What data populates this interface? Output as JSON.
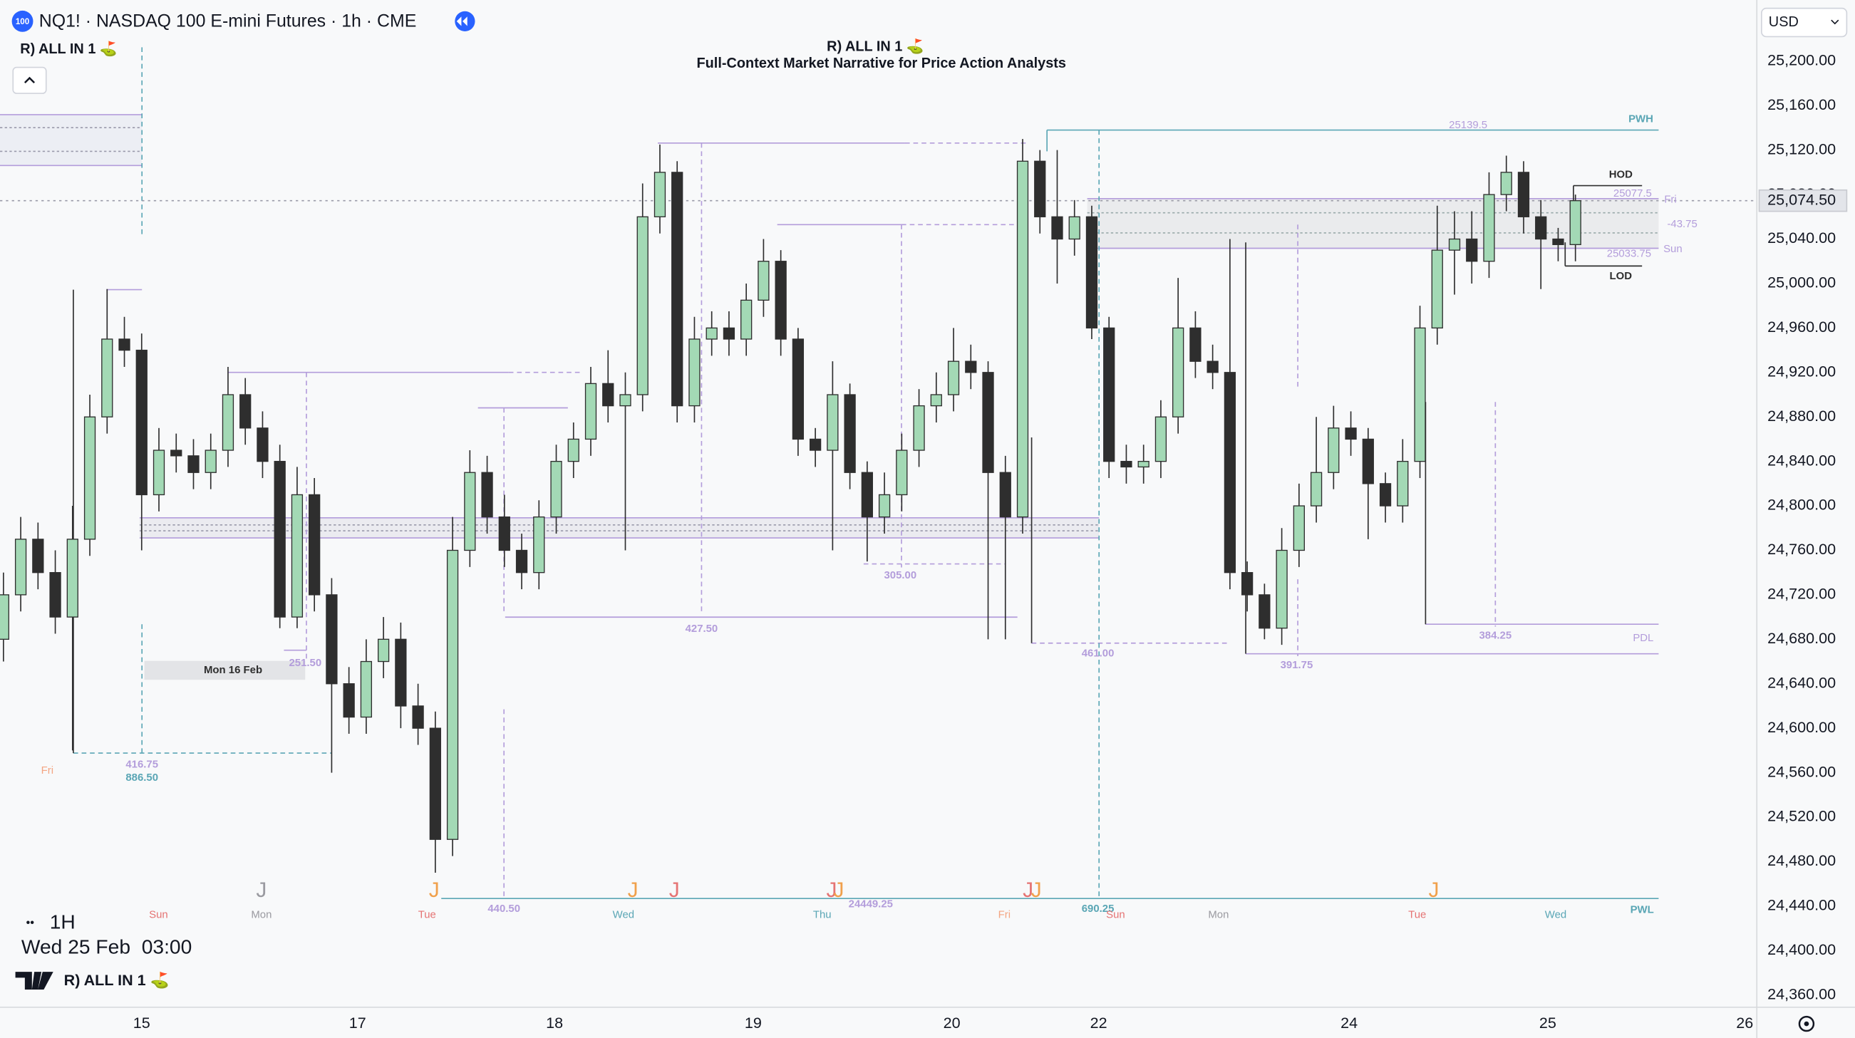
{
  "chart_data": {
    "type": "candlestick",
    "badge": "100",
    "symbol_title": "NQ1! · NASDAQ 100 E-mini Futures · 1h · CME",
    "indicator": "R) ALL IN 1 ⛳",
    "title": "R) ALL IN 1 ⛳",
    "subtitle": "Full-Context Market Narrative for Price Action Analysts",
    "currency": "USD",
    "interval": "1H",
    "date_time": "Wed 25 Feb  03:00",
    "up_color": "#a3d9b5",
    "down_color": "#2e2e2e",
    "open": [
      24680,
      24720,
      24770,
      24740,
      24700,
      24770,
      24880,
      24950,
      24940,
      24810,
      24850,
      24845,
      24830,
      24850,
      24900,
      24870,
      24840,
      24700,
      24810,
      24720,
      24640,
      24610,
      24660,
      24680,
      24620,
      24600,
      24500,
      24760,
      24830,
      24790,
      24760,
      24740,
      24790,
      24840,
      24860,
      24910,
      24890,
      24900,
      25060,
      25100,
      24890,
      24950,
      24960,
      24950,
      24985,
      25020,
      24950,
      24860,
      24850,
      24900,
      24830,
      24790,
      24810,
      24850,
      24890,
      24900,
      24930,
      24920,
      24830,
      24790,
      25110,
      25060,
      25040,
      25060,
      24960,
      24840,
      24835,
      24840,
      24880,
      24960,
      24930,
      24920,
      24740,
      24720,
      24690,
      24760,
      24800,
      24830,
      24870,
      24860,
      24820,
      24800,
      24840,
      24960,
      25030,
      25040,
      25020,
      25080,
      25100,
      25060,
      25040,
      25035
    ],
    "high": [
      24740,
      24790,
      24785,
      24760,
      24800,
      24900,
      24995,
      24970,
      24955,
      24870,
      24865,
      24860,
      24865,
      24925,
      24915,
      24885,
      24855,
      24835,
      24825,
      24735,
      24655,
      24680,
      24700,
      24695,
      24640,
      24615,
      24790,
      24850,
      24845,
      24810,
      24775,
      24805,
      24855,
      24875,
      24925,
      24940,
      24920,
      25090,
      25125,
      25110,
      24970,
      24975,
      24975,
      25000,
      25040,
      25030,
      24960,
      24870,
      24930,
      24910,
      24840,
      24830,
      24865,
      24905,
      24920,
      24960,
      24945,
      24930,
      24845,
      25130,
      25120,
      25120,
      25075,
      25070,
      24970,
      24855,
      24855,
      24895,
      25005,
      24975,
      24945,
      25040,
      24750,
      24730,
      24780,
      24820,
      24880,
      24890,
      24885,
      24870,
      24830,
      24860,
      24980,
      25070,
      25065,
      25065,
      25100,
      25115,
      25110,
      25075,
      25050,
      25080
    ],
    "low": [
      24660,
      24705,
      24725,
      24685,
      24580,
      24755,
      24865,
      24925,
      24760,
      24795,
      24830,
      24815,
      24815,
      24835,
      24855,
      24825,
      24690,
      24690,
      24705,
      24560,
      24595,
      24595,
      24645,
      24600,
      24585,
      24470,
      24485,
      24745,
      24775,
      24745,
      24725,
      24725,
      24775,
      24825,
      24845,
      24875,
      24760,
      24885,
      25045,
      24875,
      24875,
      24935,
      24935,
      24935,
      24970,
      24935,
      24845,
      24835,
      24760,
      24815,
      24750,
      24775,
      24795,
      24835,
      24875,
      24885,
      24905,
      24680,
      24680,
      24775,
      25045,
      25000,
      25025,
      24950,
      24825,
      24820,
      24820,
      24825,
      24865,
      24915,
      24905,
      24725,
      24705,
      24680,
      24675,
      24745,
      24785,
      24815,
      24845,
      24770,
      24785,
      24785,
      24825,
      24945,
      24990,
      25000,
      25005,
      25065,
      25045,
      24995,
      25020,
      25020
    ],
    "close": [
      24720,
      24770,
      24740,
      24700,
      24770,
      24880,
      24950,
      24940,
      24810,
      24850,
      24845,
      24830,
      24850,
      24900,
      24870,
      24840,
      24700,
      24810,
      24720,
      24640,
      24610,
      24660,
      24680,
      24620,
      24600,
      24500,
      24760,
      24830,
      24790,
      24760,
      24740,
      24790,
      24840,
      24860,
      24910,
      24890,
      24900,
      25060,
      25100,
      24890,
      24950,
      24960,
      24950,
      24985,
      25020,
      24950,
      24860,
      24850,
      24900,
      24830,
      24790,
      24810,
      24850,
      24890,
      24900,
      24930,
      24920,
      24830,
      24790,
      25110,
      25060,
      25040,
      25060,
      24960,
      24840,
      24835,
      24840,
      24880,
      24960,
      24930,
      24920,
      24740,
      24720,
      24690,
      24760,
      24800,
      24830,
      24870,
      24860,
      24820,
      24800,
      24840,
      24960,
      25030,
      25040,
      25020,
      25080,
      25100,
      25060,
      25040,
      25035,
      25074.5
    ],
    "last_value": 25074.5,
    "last_value_label": "25,074.50",
    "xlim": [
      -0.2,
      101.5
    ],
    "ylim": [
      24349,
      25255
    ],
    "grid": false,
    "xticks": [
      {
        "value": 8.0,
        "label": "15"
      },
      {
        "value": 20.5,
        "label": "17"
      },
      {
        "value": 31.9,
        "label": "18"
      },
      {
        "value": 43.4,
        "label": "19"
      },
      {
        "value": 54.9,
        "label": "20"
      },
      {
        "value": 63.4,
        "label": "22"
      },
      {
        "value": 77.9,
        "label": "24"
      },
      {
        "value": 89.4,
        "label": "25"
      },
      {
        "value": 100.8,
        "label": "26"
      }
    ],
    "yticks": [
      {
        "value": 25200,
        "label": "25,200.00"
      },
      {
        "value": 25160,
        "label": "25,160.00"
      },
      {
        "value": 25120,
        "label": "25,120.00"
      },
      {
        "value": 25080,
        "label": "25,080.00"
      },
      {
        "value": 25040,
        "label": "25,040.00"
      },
      {
        "value": 25000,
        "label": "25,000.00"
      },
      {
        "value": 24960,
        "label": "24,960.00"
      },
      {
        "value": 24920,
        "label": "24,920.00"
      },
      {
        "value": 24880,
        "label": "24,880.00"
      },
      {
        "value": 24840,
        "label": "24,840.00"
      },
      {
        "value": 24800,
        "label": "24,800.00"
      },
      {
        "value": 24760,
        "label": "24,760.00"
      },
      {
        "value": 24720,
        "label": "24,720.00"
      },
      {
        "value": 24680,
        "label": "24,680.00"
      },
      {
        "value": 24640,
        "label": "24,640.00"
      },
      {
        "value": 24600,
        "label": "24,600.00"
      },
      {
        "value": 24560,
        "label": "24,560.00"
      },
      {
        "value": 24520,
        "label": "24,520.00"
      },
      {
        "value": 24480,
        "label": "24,480.00"
      },
      {
        "value": 24440,
        "label": "24,440.00"
      },
      {
        "value": 24400,
        "label": "24,400.00"
      },
      {
        "value": 24360,
        "label": "24,360.00"
      }
    ],
    "annotations": [
      "25139.5",
      "PWH",
      "HOD",
      "25077.5",
      "Fri",
      "-43.75",
      "25033.75",
      "Sun",
      "LOD",
      "384.25",
      "PDL",
      "391.75",
      "461.00",
      "427.50",
      "305.00",
      "251.50",
      "Mon 16 Feb",
      "416.75",
      "886.50",
      "Fri",
      "440.50",
      "24449.25",
      "690.25",
      "PWL",
      "Sun",
      "Mon",
      "Tue",
      "Wed",
      "Thu",
      "Fri",
      "Sun",
      "Mon",
      "Tue",
      "Wed",
      "J",
      "J",
      "J",
      "J",
      "J",
      "J",
      "J",
      "J",
      "J"
    ]
  }
}
